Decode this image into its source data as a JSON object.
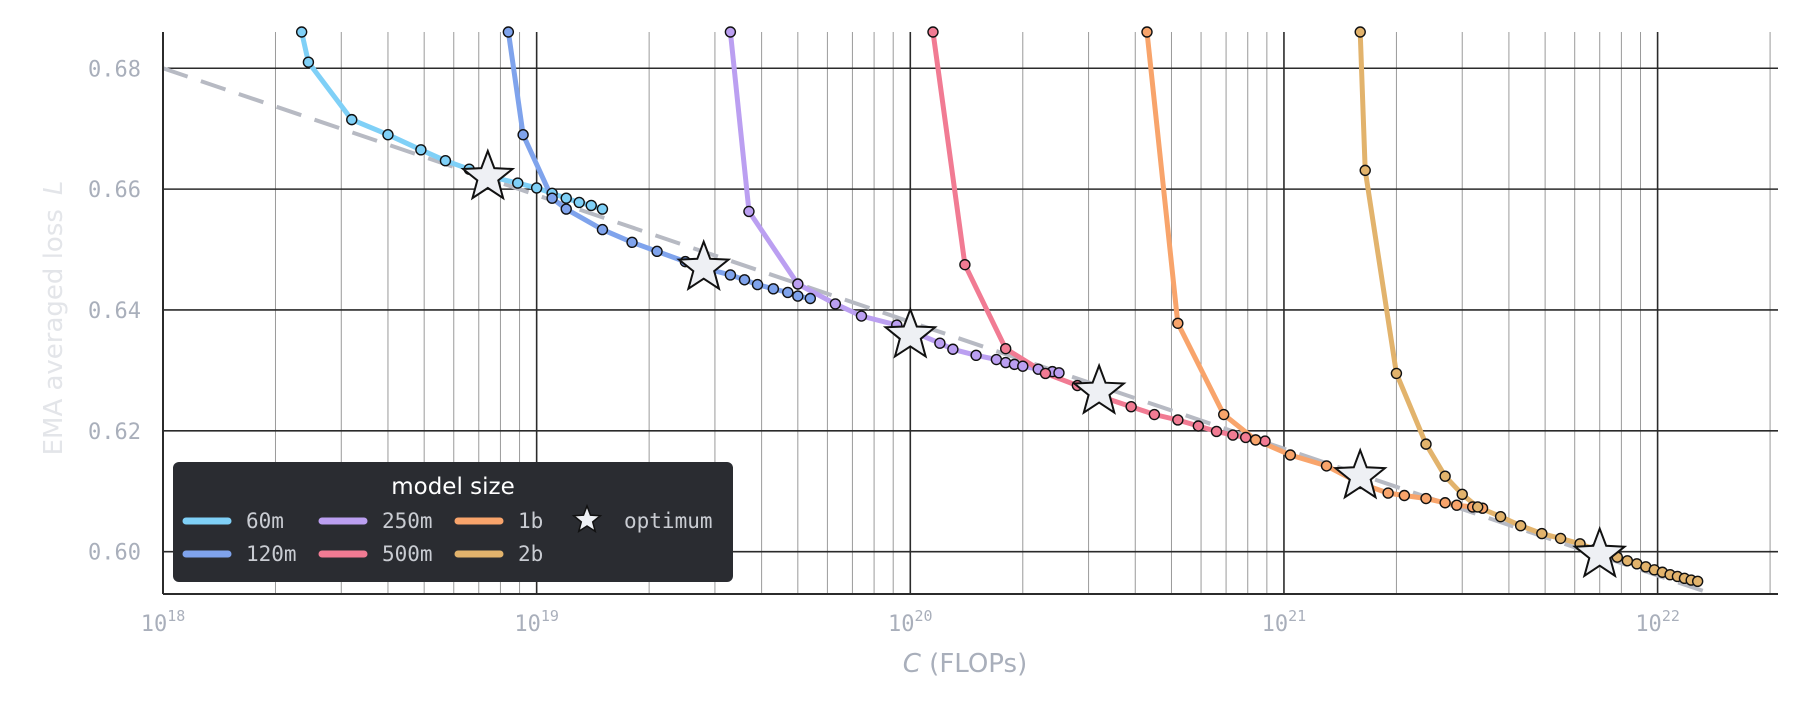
{
  "chart_data": {
    "type": "line",
    "title": "",
    "xlabel": "C",
    "xlabel_unit": " (FLOPs)",
    "ylabel": "EMA averaged loss",
    "ylabel_symbol": "L",
    "xscale": "log",
    "xlim": [
      1e+18,
      2.1e+22
    ],
    "ylim": [
      0.593,
      0.686
    ],
    "x_tick_labels": [
      "10",
      "10",
      "10",
      "10",
      "10"
    ],
    "x_tick_exponents": [
      "18",
      "19",
      "20",
      "21",
      "22"
    ],
    "x_ticks": [
      1e+18,
      1e+19,
      1e+20,
      1e+21,
      1e+22
    ],
    "y_tick_labels": [
      "0.60",
      "0.62",
      "0.64",
      "0.66",
      "0.68"
    ],
    "y_ticks": [
      0.6,
      0.62,
      0.64,
      0.66,
      0.68
    ],
    "grid": true,
    "legend": {
      "title": "model size",
      "placement": "lower-left",
      "entries": [
        "60m",
        "120m",
        "250m",
        "500m",
        "1b",
        "2b"
      ],
      "optimum_label": "optimum"
    },
    "colors": {
      "60m": "#7fd0f7",
      "120m": "#7fa3ec",
      "250m": "#bb9ff1",
      "500m": "#f17b93",
      "1b": "#f8a46b",
      "2b": "#e2b36c",
      "frontier": "#b7bac3"
    },
    "frontier": {
      "style": "dashed",
      "x": [
        1e+18,
        1.4e+22
      ],
      "y": [
        0.68,
        0.593
      ]
    },
    "series": [
      {
        "name": "60m",
        "x": [
          2.35e+18,
          2.45e+18,
          3.2e+18,
          4e+18,
          4.9e+18,
          5.7e+18,
          6.6e+18,
          7.6e+18,
          8.9e+18,
          1e+19,
          1.1e+19,
          1.2e+19,
          1.3e+19,
          1.4e+19,
          1.5e+19
        ],
        "y": [
          0.686,
          0.681,
          0.6715,
          0.669,
          0.6665,
          0.6647,
          0.6633,
          0.662,
          0.661,
          0.6602,
          0.6593,
          0.6585,
          0.6578,
          0.6573,
          0.6567
        ]
      },
      {
        "name": "120m",
        "x": [
          8.4e+18,
          9.2e+18,
          1.1e+19,
          1.2e+19,
          1.5e+19,
          1.8e+19,
          2.1e+19,
          2.5e+19,
          2.9e+19,
          3.3e+19,
          3.6e+19,
          3.9e+19,
          4.3e+19,
          4.7e+19,
          5e+19,
          5.4e+19
        ],
        "y": [
          0.686,
          0.669,
          0.6585,
          0.6567,
          0.6533,
          0.6512,
          0.6497,
          0.648,
          0.6467,
          0.6458,
          0.645,
          0.6442,
          0.6435,
          0.6429,
          0.6423,
          0.6419
        ]
      },
      {
        "name": "250m",
        "x": [
          3.3e+19,
          3.7e+19,
          5e+19,
          6.3e+19,
          7.4e+19,
          9.2e+19,
          1.2e+20,
          1.3e+20,
          1.5e+20,
          1.7e+20,
          1.8e+20,
          1.9e+20,
          2e+20,
          2.2e+20,
          2.4e+20,
          2.5e+20
        ],
        "y": [
          0.686,
          0.6563,
          0.6443,
          0.641,
          0.639,
          0.6375,
          0.6345,
          0.6335,
          0.6325,
          0.6318,
          0.6313,
          0.631,
          0.6307,
          0.6302,
          0.6298,
          0.6296
        ]
      },
      {
        "name": "500m",
        "x": [
          1.15e+20,
          1.4e+20,
          1.8e+20,
          2.3e+20,
          2.8e+20,
          3.3e+20,
          3.9e+20,
          4.5e+20,
          5.2e+20,
          5.9e+20,
          6.6e+20,
          7.3e+20,
          7.9e+20,
          8.4e+20,
          8.9e+20
        ],
        "y": [
          0.686,
          0.6475,
          0.6336,
          0.6295,
          0.6275,
          0.6255,
          0.624,
          0.6227,
          0.6218,
          0.6208,
          0.6199,
          0.6193,
          0.6189,
          0.6185,
          0.6183
        ]
      },
      {
        "name": "1b",
        "x": [
          4.3e+20,
          5.2e+20,
          6.9e+20,
          8.4e+20,
          1.04e+21,
          1.3e+21,
          1.6e+21,
          1.9e+21,
          2.1e+21,
          2.4e+21,
          2.7e+21,
          2.9e+21,
          3.2e+21,
          3.4e+21
        ],
        "y": [
          0.686,
          0.6378,
          0.6227,
          0.6185,
          0.616,
          0.6142,
          0.6113,
          0.6097,
          0.6093,
          0.6088,
          0.6081,
          0.6077,
          0.6074,
          0.6072
        ]
      },
      {
        "name": "2b",
        "x": [
          1.6e+21,
          1.65e+21,
          2e+21,
          2.4e+21,
          2.7e+21,
          3e+21,
          3.3e+21,
          3.8e+21,
          4.3e+21,
          4.9e+21,
          5.5e+21,
          6.2e+21,
          6.8e+21,
          7.3e+21,
          7.8e+21,
          8.3e+21,
          8.8e+21,
          9.3e+21,
          9.8e+21,
          1.03e+22,
          1.08e+22,
          1.13e+22,
          1.18e+22,
          1.23e+22,
          1.28e+22
        ],
        "y": [
          0.686,
          0.6631,
          0.6295,
          0.6178,
          0.6125,
          0.6095,
          0.6074,
          0.6058,
          0.6043,
          0.603,
          0.6022,
          0.6013,
          0.6004,
          0.5997,
          0.5991,
          0.5985,
          0.598,
          0.5975,
          0.597,
          0.5966,
          0.5962,
          0.5959,
          0.5956,
          0.5953,
          0.5951
        ]
      }
    ],
    "optimum_points": {
      "name": "optimum",
      "x": [
        7.4e+18,
        2.8e+19,
        1e+20,
        3.2e+20,
        1.6e+21,
        7e+21
      ],
      "y": [
        0.662,
        0.647,
        0.6358,
        0.6265,
        0.6125,
        0.5995
      ]
    }
  }
}
